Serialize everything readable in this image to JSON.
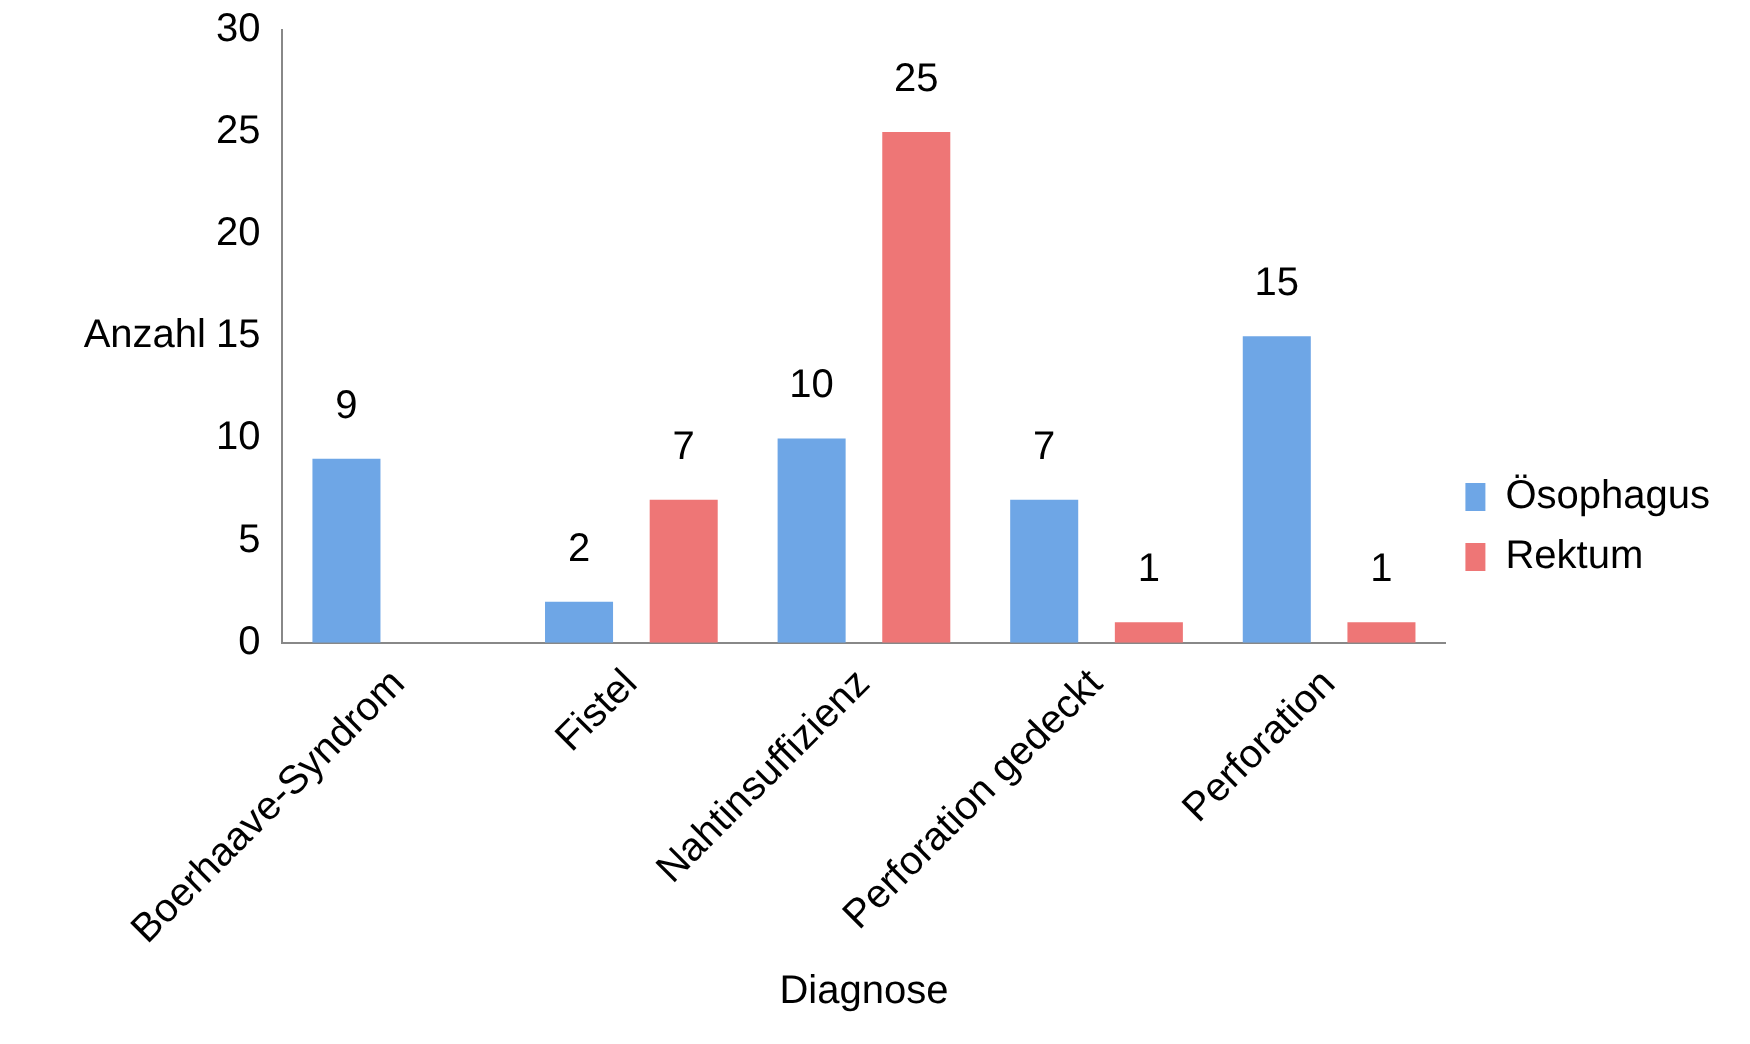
{
  "chart_data": {
    "type": "bar",
    "xlabel": "Diagnose",
    "ylabel": "Anzahl",
    "categories": [
      "Boerhaave-Syndrom",
      "Fistel",
      "Nahtinsuffizienz",
      "Perforation gedeckt",
      "Perforation"
    ],
    "series": [
      {
        "name": "Ösophagus",
        "color": "#6ea6e6",
        "values": [
          9,
          2,
          10,
          7,
          15
        ]
      },
      {
        "name": "Rektum",
        "color": "#ee7676",
        "values": [
          null,
          7,
          25,
          1,
          1
        ]
      }
    ],
    "ylim": [
      0,
      30
    ],
    "yticks": [
      0,
      5,
      10,
      15,
      20,
      25,
      30
    ],
    "grid": false,
    "legend": "right",
    "data_labels": true
  }
}
